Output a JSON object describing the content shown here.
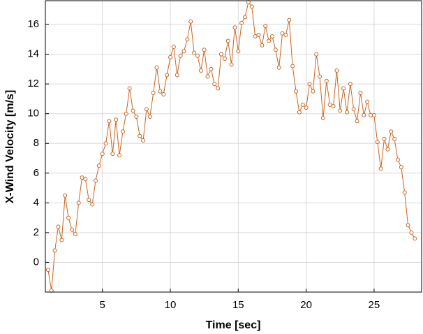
{
  "chart_data": {
    "type": "line",
    "xlabel": "Time [sec]",
    "ylabel": "X-Wind Velocity [m/s]",
    "x": [
      1,
      1.25,
      1.5,
      1.75,
      2,
      2.25,
      2.5,
      2.75,
      3,
      3.25,
      3.5,
      3.75,
      4,
      4.25,
      4.5,
      4.75,
      5,
      5.25,
      5.5,
      5.75,
      6,
      6.25,
      6.5,
      6.75,
      7,
      7.25,
      7.5,
      7.75,
      8,
      8.25,
      8.5,
      8.75,
      9,
      9.25,
      9.5,
      9.75,
      10,
      10.25,
      10.5,
      10.75,
      11,
      11.25,
      11.5,
      11.75,
      12,
      12.25,
      12.5,
      12.75,
      13,
      13.25,
      13.5,
      13.75,
      14,
      14.25,
      14.5,
      14.75,
      15,
      15.25,
      15.5,
      15.75,
      16,
      16.25,
      16.5,
      16.75,
      17,
      17.25,
      17.5,
      17.75,
      18,
      18.25,
      18.5,
      18.75,
      19,
      19.25,
      19.5,
      19.75,
      20,
      20.25,
      20.5,
      20.75,
      21,
      21.25,
      21.5,
      21.75,
      22,
      22.25,
      22.5,
      22.75,
      23,
      23.25,
      23.5,
      23.75,
      24,
      24.25,
      24.5,
      24.75,
      25,
      25.25,
      25.5,
      25.75,
      26,
      26.25,
      26.5,
      26.75,
      27,
      27.25,
      27.5,
      27.75,
      28
    ],
    "values": [
      -0.5,
      -1.9,
      0.8,
      2.4,
      1.5,
      4.5,
      3.0,
      2.2,
      1.9,
      4.0,
      5.7,
      5.6,
      4.2,
      3.9,
      5.5,
      6.5,
      7.3,
      8.0,
      9.5,
      7.3,
      9.6,
      7.2,
      8.8,
      10.0,
      11.7,
      10.2,
      9.8,
      8.5,
      8.2,
      10.3,
      9.8,
      11.4,
      13.1,
      11.5,
      11.3,
      12.6,
      13.8,
      14.5,
      12.6,
      13.9,
      14.2,
      15.0,
      16.2,
      14.1,
      13.9,
      12.9,
      14.3,
      12.5,
      13.0,
      12.0,
      11.7,
      14.0,
      13.7,
      14.9,
      13.3,
      15.8,
      14.2,
      16.1,
      16.5,
      17.5,
      17.2,
      15.2,
      15.3,
      14.6,
      15.9,
      14.9,
      15.2,
      14.3,
      13.1,
      15.4,
      15.3,
      16.3,
      13.2,
      11.5,
      10.1,
      10.6,
      10.4,
      12.0,
      11.5,
      14.0,
      12.5,
      9.7,
      12.2,
      10.6,
      10.5,
      12.9,
      10.2,
      11.7,
      10.1,
      12.0,
      10.3,
      9.5,
      11.4,
      9.9,
      10.8,
      9.9,
      9.9,
      8.1,
      6.3,
      8.3,
      7.6,
      8.8,
      8.3,
      6.9,
      6.4,
      4.7,
      2.5,
      2.0,
      1.6
    ],
    "color": "#c8641e",
    "xlim": [
      0.8,
      28.5
    ],
    "xticks": [
      5,
      10,
      15,
      20,
      25
    ],
    "ylim": [
      -2,
      17.6
    ],
    "yticks": [
      0,
      2,
      4,
      6,
      8,
      10,
      12,
      14,
      16
    ],
    "grid": true
  }
}
